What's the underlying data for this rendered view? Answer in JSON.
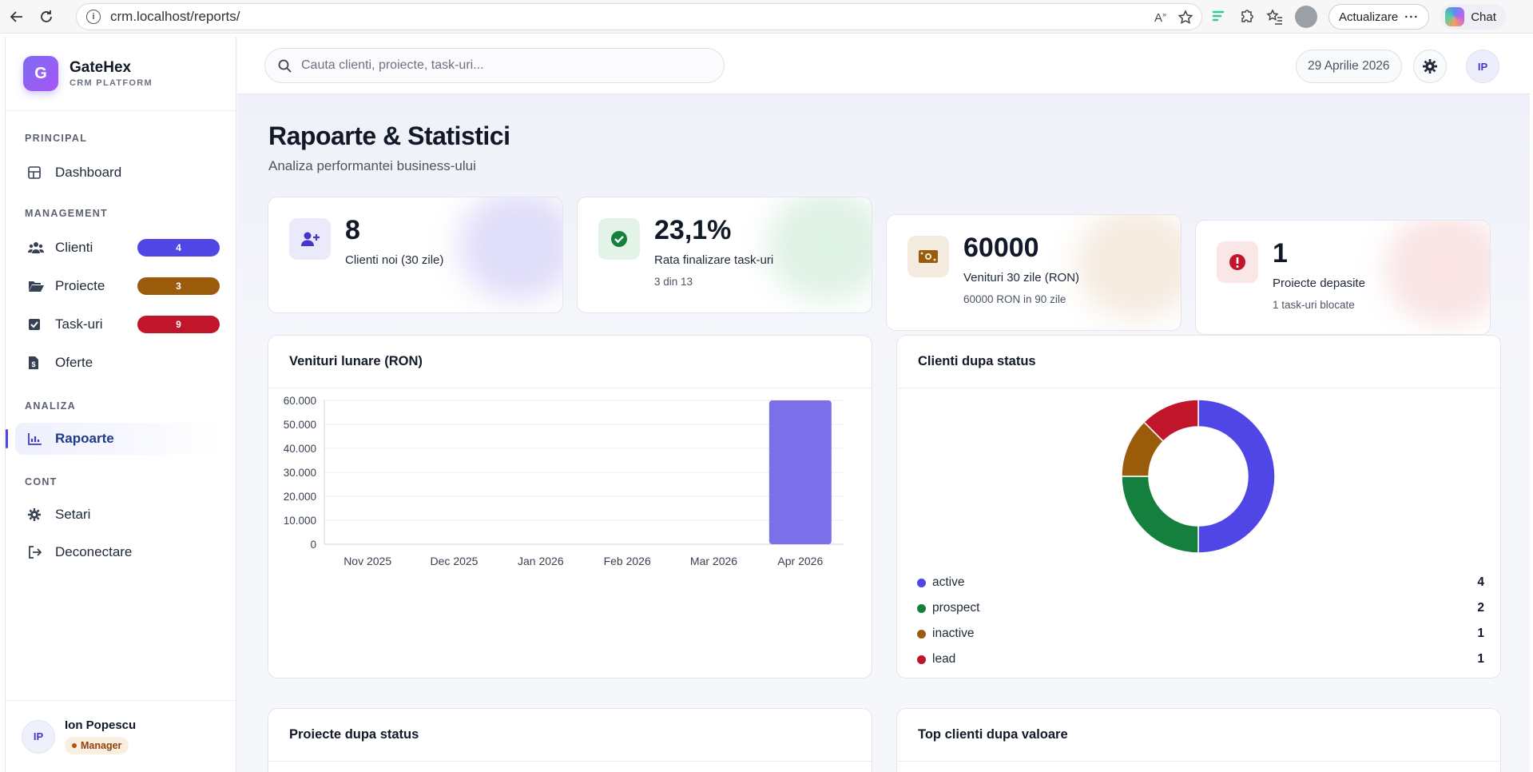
{
  "browser": {
    "url": "crm.localhost/reports/",
    "update_label": "Actualizare",
    "chat_label": "Chat"
  },
  "brand": {
    "logo_letter": "G",
    "name": "GateHex",
    "subtitle": "CRM PLATFORM"
  },
  "sidebar": {
    "sections": {
      "principal": "PRINCIPAL",
      "management": "MANAGEMENT",
      "analiza": "ANALIZA",
      "cont": "CONT"
    },
    "items": {
      "dashboard": "Dashboard",
      "clienti": "Clienti",
      "proiecte": "Proiecte",
      "taskuri": "Task-uri",
      "oferte": "Oferte",
      "rapoarte": "Rapoarte",
      "setari": "Setari",
      "deconectare": "Deconectare"
    },
    "badges": {
      "clienti": "4",
      "proiecte": "3",
      "taskuri": "9"
    },
    "badge_colors": {
      "clienti": "#4f46e5",
      "proiecte": "#9a5b0b",
      "taskuri": "#c0152a"
    },
    "user": {
      "initials": "IP",
      "name": "Ion Popescu",
      "role": "Manager"
    }
  },
  "topbar": {
    "search_placeholder": "Cauta clienti, proiecte, task-uri...",
    "date": "29 Aprilie 2026",
    "avatar_initials": "IP"
  },
  "page": {
    "title": "Rapoarte & Statistici",
    "subtitle": "Analiza performantei business-ului"
  },
  "stats": [
    {
      "value": "8",
      "label": "Clienti noi (30 zile)",
      "sub": "",
      "icon": "user-plus-icon",
      "accent": "#4338ca"
    },
    {
      "value": "23,1%",
      "label": "Rata finalizare task-uri",
      "sub": "3 din 13",
      "icon": "check-circle-icon",
      "accent": "#15803d"
    },
    {
      "value": "60000",
      "label": "Venituri 30 zile (RON)",
      "sub": "60000 RON in 90 zile",
      "icon": "money-icon",
      "accent": "#9a5b0b"
    },
    {
      "value": "1",
      "label": "Proiecte depasite",
      "sub": "1 task-uri blocate",
      "icon": "alert-icon",
      "accent": "#c0152a"
    }
  ],
  "cards": {
    "revenue_title": "Venituri lunare (RON)",
    "clients_status_title": "Clienti dupa status",
    "projects_status_title": "Proiecte dupa status",
    "top_clients_title": "Top clienti dupa valoare"
  },
  "chart_data": [
    {
      "type": "bar",
      "title": "Venituri lunare (RON)",
      "categories": [
        "Nov 2025",
        "Dec 2025",
        "Jan 2026",
        "Feb 2026",
        "Mar 2026",
        "Apr 2026"
      ],
      "values": [
        0,
        0,
        0,
        0,
        0,
        60000
      ],
      "yticks": [
        "0",
        "10.000",
        "20.000",
        "30.000",
        "40.000",
        "50.000",
        "60.000"
      ],
      "ylim": [
        0,
        60000
      ],
      "grid": true,
      "color": "#7b70ea"
    },
    {
      "type": "pie",
      "title": "Clienti dupa status",
      "donut": true,
      "labels": [
        "active",
        "prospect",
        "inactive",
        "lead"
      ],
      "values": [
        4,
        2,
        1,
        1
      ],
      "colors": [
        "#4f46e5",
        "#15803d",
        "#9a5b0b",
        "#c0152a"
      ],
      "legend": "bottom"
    }
  ]
}
